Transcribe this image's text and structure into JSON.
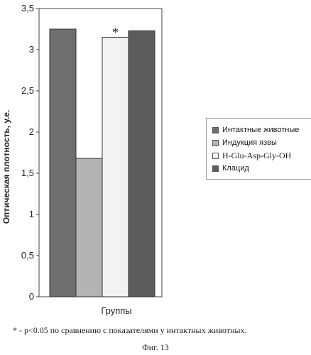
{
  "chart_data": {
    "type": "bar",
    "xlabel": "Группы",
    "ylabel": "Оптическая плотность, у.е.",
    "ylim": [
      0,
      3.5
    ],
    "yticks": [
      "0",
      "0,5",
      "1",
      "1,5",
      "2",
      "2,5",
      "3",
      "3,5"
    ],
    "grid": false,
    "legend_position": "right",
    "series": [
      {
        "name": "Интактные животные",
        "value": 3.25,
        "color": "#6e6e6e",
        "annotation": ""
      },
      {
        "name": "Индукция язвы",
        "value": 1.68,
        "color": "#b4b4b4",
        "annotation": ""
      },
      {
        "name": "H-Glu-Asp-Gly-OH",
        "value": 3.15,
        "color": "#f2f2f2",
        "annotation": "*"
      },
      {
        "name": "Клацид",
        "value": 3.23,
        "color": "#5c5c5c",
        "annotation": ""
      }
    ]
  },
  "footnote": "* - p<0.05 по сравнению с показателями у интактных животных.",
  "figure_caption": "Фиг. 13"
}
